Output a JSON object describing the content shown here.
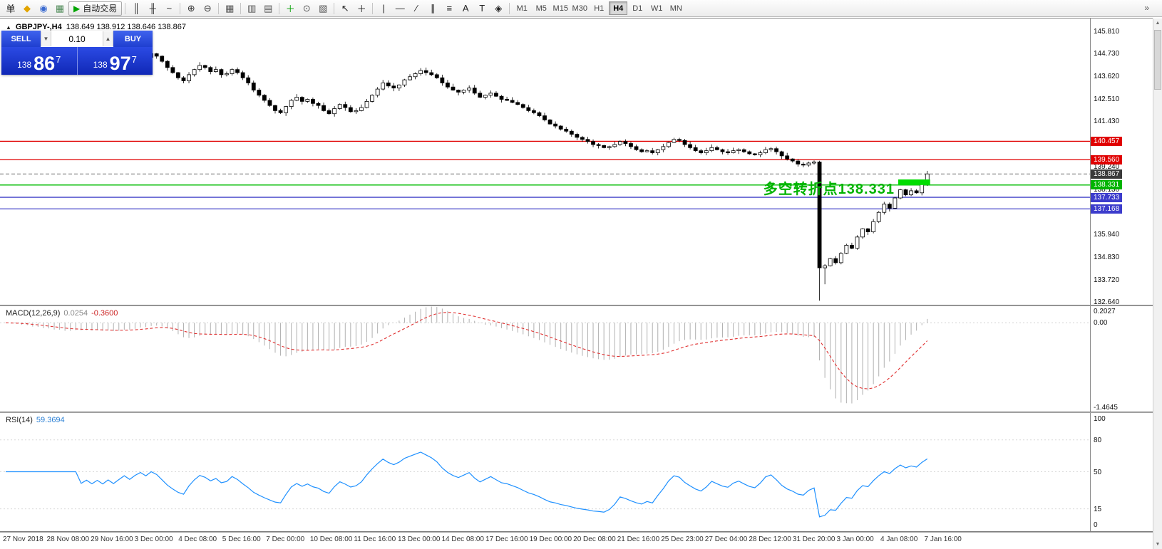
{
  "toolbar": {
    "items": [
      {
        "name": "new-order-button",
        "glyph": "单",
        "color": "#111"
      },
      {
        "name": "market-watch-icon",
        "glyph": "◆",
        "color": "#e2a400"
      },
      {
        "name": "data-window-icon",
        "glyph": "◉",
        "color": "#3a6ad0"
      },
      {
        "name": "navigator-icon",
        "glyph": "▦",
        "color": "#4e8a57"
      },
      {
        "name": "auto-trading-button",
        "glyph": "▶",
        "color": "#00a400",
        "label": "自动交易",
        "labeled": true
      },
      {
        "sep": true
      },
      {
        "name": "bar-chart-icon",
        "glyph": "║",
        "color": "#333"
      },
      {
        "name": "candlestick-chart-icon",
        "glyph": "╫",
        "color": "#333"
      },
      {
        "name": "line-chart-icon",
        "glyph": "~",
        "color": "#333"
      },
      {
        "sep": true
      },
      {
        "name": "zoom-in-icon",
        "glyph": "⊕",
        "color": "#333"
      },
      {
        "name": "zoom-out-icon",
        "glyph": "⊖",
        "color": "#333"
      },
      {
        "sep": true
      },
      {
        "name": "tile-windows-icon",
        "glyph": "▦",
        "color": "#555"
      },
      {
        "sep": true
      },
      {
        "name": "arrange-windows-icon",
        "glyph": "▥",
        "color": "#555"
      },
      {
        "name": "cascade-windows-icon",
        "glyph": "▤",
        "color": "#555"
      },
      {
        "sep": true
      },
      {
        "name": "new-chart-icon",
        "glyph": "＋",
        "color": "#00a000"
      },
      {
        "name": "period-icon",
        "glyph": "⊙",
        "color": "#555"
      },
      {
        "name": "templates-icon",
        "glyph": "▧",
        "color": "#555"
      },
      {
        "sep": true
      },
      {
        "name": "cursor-icon",
        "glyph": "↖",
        "color": "#222"
      },
      {
        "name": "crosshair-icon",
        "glyph": "＋",
        "color": "#222"
      },
      {
        "sep": true
      },
      {
        "name": "vertical-line-icon",
        "glyph": "|",
        "color": "#222"
      },
      {
        "name": "horizontal-line-icon",
        "glyph": "—",
        "color": "#222"
      },
      {
        "name": "trendline-icon",
        "glyph": "∕",
        "color": "#222"
      },
      {
        "name": "equidistant-channel-icon",
        "glyph": "∥",
        "color": "#222"
      },
      {
        "name": "fibonacci-icon",
        "glyph": "≡",
        "color": "#222"
      },
      {
        "name": "text-icon",
        "glyph": "A",
        "color": "#222"
      },
      {
        "name": "text-label-icon",
        "glyph": "T",
        "color": "#222"
      },
      {
        "name": "arrows-icon",
        "glyph": "◈",
        "color": "#222"
      },
      {
        "sep": true
      }
    ],
    "timeframes": [
      "M1",
      "M5",
      "M15",
      "M30",
      "H1",
      "H4",
      "D1",
      "W1",
      "MN"
    ],
    "active_timeframe": "H4",
    "overflow_glyph": "»"
  },
  "quote_panel": {
    "sell_label": "SELL",
    "buy_label": "BUY",
    "volume": "0.10",
    "spin_down_glyph": "▼",
    "spin_up_glyph": "▲",
    "bid": {
      "prefix": "138",
      "big": "86",
      "sup": "7"
    },
    "ask": {
      "prefix": "138",
      "big": "97",
      "sup": "7"
    }
  },
  "header": {
    "collapse_glyph": "▲",
    "symbol": "GBPJPY-,H4",
    "ohlc": "138.649 138.912 138.646 138.867"
  },
  "annotation": {
    "text": "多空转折点138.331",
    "color": "#00b300"
  },
  "scrollbar": {
    "up_glyph": "▲",
    "down_glyph": "▼"
  },
  "chart_data": {
    "type": "candlestick",
    "symbol": "GBPJPY-",
    "timeframe": "H4",
    "ohlc_current": {
      "open": 138.649,
      "high": 138.912,
      "low": 138.646,
      "close": 138.867
    },
    "closes": [
      145.05,
      144.9,
      145.0,
      144.75,
      144.88,
      144.62,
      144.78,
      144.55,
      144.7,
      144.48,
      144.62,
      144.4,
      144.55,
      144.7,
      144.5,
      144.62,
      144.42,
      144.55,
      144.35,
      144.5,
      144.3,
      144.45,
      144.6,
      144.42,
      144.58,
      144.7,
      144.55,
      144.72,
      144.6,
      144.35,
      144.05,
      143.8,
      143.55,
      143.4,
      143.7,
      143.95,
      144.15,
      144.05,
      143.85,
      143.95,
      143.7,
      143.75,
      143.95,
      143.8,
      143.55,
      143.3,
      142.95,
      142.7,
      142.45,
      142.2,
      141.95,
      141.85,
      142.15,
      142.45,
      142.6,
      142.4,
      142.5,
      142.3,
      142.2,
      141.95,
      141.8,
      142.05,
      142.25,
      142.1,
      141.9,
      141.95,
      142.1,
      142.4,
      142.7,
      143.0,
      143.3,
      143.15,
      143.05,
      143.2,
      143.45,
      143.6,
      143.75,
      143.9,
      143.8,
      143.7,
      143.55,
      143.3,
      143.1,
      142.95,
      142.85,
      142.95,
      143.05,
      142.8,
      142.6,
      142.7,
      142.8,
      142.65,
      142.5,
      142.45,
      142.35,
      142.25,
      142.1,
      141.95,
      141.85,
      141.7,
      141.5,
      141.3,
      141.2,
      141.05,
      140.95,
      140.8,
      140.65,
      140.55,
      140.45,
      140.3,
      140.25,
      140.15,
      140.2,
      140.3,
      140.45,
      140.35,
      140.2,
      140.05,
      139.95,
      140.0,
      139.9,
      140.05,
      140.2,
      140.4,
      140.55,
      140.5,
      140.3,
      140.15,
      140.0,
      139.9,
      140.0,
      140.15,
      140.05,
      139.95,
      139.9,
      140.0,
      140.05,
      139.95,
      139.85,
      139.8,
      139.9,
      140.05,
      140.1,
      139.95,
      139.75,
      139.6,
      139.5,
      139.35,
      139.3,
      139.4,
      139.45,
      134.3,
      134.4,
      134.75,
      134.55,
      135.0,
      135.4,
      135.25,
      135.8,
      136.2,
      136.05,
      136.55,
      137.0,
      137.4,
      137.2,
      137.7,
      138.1,
      137.85,
      138.05,
      137.95,
      138.45,
      138.87
    ],
    "crash_bar_index": 151,
    "crash_low": 132.7,
    "price_levels": [
      {
        "label": "140.457",
        "price": 140.457,
        "color": "#e00000",
        "style": "solid",
        "badge_bg": "#e00000",
        "name": "resistance-upper"
      },
      {
        "label": "139.560",
        "price": 139.56,
        "color": "#e00000",
        "style": "solid",
        "badge_bg": "#e00000",
        "name": "resistance-lower"
      },
      {
        "label": "138.867",
        "price": 138.867,
        "color": "#8a8a8a",
        "style": "dash",
        "badge_bg": "#3a3a3a",
        "name": "current-price"
      },
      {
        "label": "138.331",
        "price": 138.331,
        "color": "#00bb00",
        "style": "solid",
        "badge_bg": "#00b400",
        "name": "turning-point"
      },
      {
        "label": "137.733",
        "price": 137.733,
        "color": "#4040c8",
        "style": "solid",
        "badge_bg": "#3c3ccc",
        "name": "support-upper"
      },
      {
        "label": "137.168",
        "price": 137.168,
        "color": "#4040c8",
        "style": "solid",
        "badge_bg": "#3c3ccc",
        "name": "support-lower"
      }
    ],
    "highlight_zone": {
      "price_from": 138.33,
      "price_to": 138.6,
      "bar_from": 166,
      "bar_to": 171,
      "color": "#00dd00"
    },
    "y_ticks": [
      "145.810",
      "144.730",
      "143.620",
      "142.510",
      "141.430",
      "139.240",
      "138.130",
      "135.940",
      "134.830",
      "133.720",
      "132.640"
    ],
    "x_ticks": [
      "27 Nov 2018",
      "28 Nov 08:00",
      "29 Nov 16:00",
      "3 Dec 00:00",
      "4 Dec 08:00",
      "5 Dec 16:00",
      "7 Dec 00:00",
      "10 Dec 08:00",
      "11 Dec 16:00",
      "13 Dec 00:00",
      "14 Dec 08:00",
      "17 Dec 16:00",
      "19 Dec 00:00",
      "20 Dec 08:00",
      "21 Dec 16:00",
      "25 Dec 23:00",
      "27 Dec 04:00",
      "28 Dec 12:00",
      "31 Dec 20:00",
      "3 Jan 00:00",
      "4 Jan 08:00",
      "7 Jan 16:00"
    ],
    "indicators": [
      {
        "name": "MACD",
        "header_label": "MACD(12,26,9)",
        "header_main": "0.0254",
        "header_signal": "-0.3600",
        "params": [
          12,
          26,
          9
        ],
        "scale_ticks": [
          0.2027,
          0.0,
          -1.4645
        ],
        "scale_tick_labels": [
          "0.2027",
          "0.00",
          "-1.4645"
        ]
      },
      {
        "name": "RSI",
        "header_label": "RSI(14)",
        "header_value": "59.3694",
        "period": 14,
        "scale_ticks": [
          100,
          80,
          50,
          15,
          0
        ],
        "levels": [
          80,
          50,
          15
        ]
      }
    ]
  }
}
